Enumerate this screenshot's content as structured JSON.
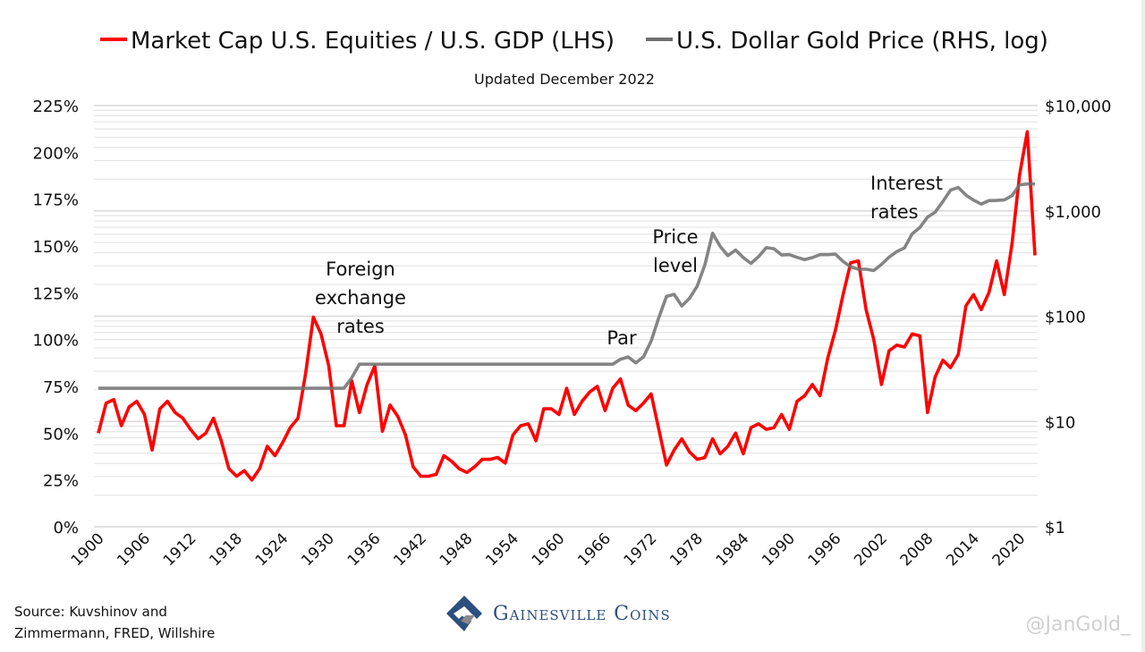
{
  "chart_data": {
    "type": "line",
    "title": "",
    "subtitle": "Updated December 2022",
    "x": [
      1900,
      1901,
      1902,
      1903,
      1904,
      1905,
      1906,
      1907,
      1908,
      1909,
      1910,
      1911,
      1912,
      1913,
      1914,
      1915,
      1916,
      1917,
      1918,
      1919,
      1920,
      1921,
      1922,
      1923,
      1924,
      1925,
      1926,
      1927,
      1928,
      1929,
      1930,
      1931,
      1932,
      1933,
      1934,
      1935,
      1936,
      1937,
      1938,
      1939,
      1940,
      1941,
      1942,
      1943,
      1944,
      1945,
      1946,
      1947,
      1948,
      1949,
      1950,
      1951,
      1952,
      1953,
      1954,
      1955,
      1956,
      1957,
      1958,
      1959,
      1960,
      1961,
      1962,
      1963,
      1964,
      1965,
      1966,
      1967,
      1968,
      1969,
      1970,
      1971,
      1972,
      1973,
      1974,
      1975,
      1976,
      1977,
      1978,
      1979,
      1980,
      1981,
      1982,
      1983,
      1984,
      1985,
      1986,
      1987,
      1988,
      1989,
      1990,
      1991,
      1992,
      1993,
      1994,
      1995,
      1996,
      1997,
      1998,
      1999,
      2000,
      2001,
      2002,
      2003,
      2004,
      2005,
      2006,
      2007,
      2008,
      2009,
      2010,
      2011,
      2012,
      2013,
      2014,
      2015,
      2016,
      2017,
      2018,
      2019,
      2020,
      2021,
      2022
    ],
    "series": [
      {
        "name": "Market Cap U.S. Equities / U.S. GDP (LHS)",
        "axis": "left",
        "color": "#ff0000",
        "unit": "%",
        "values": [
          50,
          66,
          68,
          54,
          64,
          67,
          60,
          41,
          63,
          67,
          61,
          58,
          52,
          47,
          50,
          58,
          46,
          31,
          27,
          30,
          25,
          31,
          43,
          38,
          45,
          53,
          58,
          82,
          112,
          103,
          86,
          54,
          54,
          78,
          61,
          76,
          86,
          51,
          65,
          59,
          49,
          32,
          27,
          27,
          28,
          38,
          35,
          31,
          29,
          32,
          36,
          36,
          37,
          34,
          49,
          54,
          55,
          46,
          63,
          63,
          60,
          74,
          60,
          67,
          72,
          75,
          62,
          74,
          79,
          65,
          62,
          66,
          71,
          52,
          33,
          41,
          47,
          40,
          36,
          37,
          47,
          39,
          43,
          50,
          39,
          53,
          55,
          52,
          53,
          60,
          52,
          67,
          70,
          76,
          70,
          90,
          105,
          124,
          141,
          142,
          116,
          100,
          76,
          94,
          97,
          96,
          103,
          102,
          61,
          80,
          89,
          85,
          92,
          118,
          124,
          116,
          125,
          142,
          124,
          151,
          188,
          211,
          145
        ]
      },
      {
        "name": "U.S. Dollar Gold Price (RHS, log)",
        "axis": "right",
        "color": "#707070",
        "unit": "$",
        "values": [
          20.67,
          20.67,
          20.67,
          20.67,
          20.67,
          20.67,
          20.67,
          20.67,
          20.67,
          20.67,
          20.67,
          20.67,
          20.67,
          20.67,
          20.67,
          20.67,
          20.67,
          20.67,
          20.67,
          20.67,
          20.67,
          20.67,
          20.67,
          20.67,
          20.67,
          20.67,
          20.67,
          20.67,
          20.67,
          20.67,
          20.67,
          20.67,
          20.67,
          26,
          35,
          35,
          35,
          35,
          35,
          35,
          35,
          35,
          35,
          35,
          35,
          35,
          35,
          35,
          35,
          35,
          35,
          35,
          35,
          35,
          35,
          35,
          35,
          35,
          35,
          35,
          35,
          35,
          35,
          35,
          35,
          35,
          35,
          35,
          39,
          41,
          36,
          41,
          58,
          97,
          154,
          161,
          125,
          148,
          193,
          307,
          613,
          460,
          376,
          424,
          361,
          317,
          368,
          447,
          437,
          381,
          384,
          362,
          344,
          360,
          384,
          384,
          388,
          331,
          294,
          279,
          279,
          271,
          310,
          363,
          410,
          445,
          604,
          695,
          872,
          972,
          1225,
          1572,
          1669,
          1411,
          1266,
          1160,
          1251,
          1257,
          1268,
          1393,
          1770,
          1799,
          1800
        ]
      }
    ],
    "left_axis": {
      "range": [
        0,
        225
      ],
      "ticks": [
        "0%",
        "25%",
        "50%",
        "75%",
        "100%",
        "125%",
        "150%",
        "175%",
        "200%",
        "225%"
      ]
    },
    "right_axis": {
      "scale": "log",
      "range": [
        1,
        10000
      ],
      "ticks": [
        "$1",
        "$10",
        "$100",
        "$1,000",
        "$10,000"
      ]
    },
    "x_ticks": [
      "1900",
      "1906",
      "1912",
      "1918",
      "1924",
      "1930",
      "1936",
      "1942",
      "1948",
      "1954",
      "1960",
      "1966",
      "1972",
      "1978",
      "1984",
      "1990",
      "1996",
      "2002",
      "2008",
      "2014",
      "2020"
    ],
    "grid": "horizontal log minor gridlines",
    "legend_placement": "top",
    "annotations": [
      {
        "lines": [
          "Foreign",
          "exchange",
          "rates"
        ],
        "year": 1935
      },
      {
        "lines": [
          "Par"
        ],
        "year": 1968
      },
      {
        "lines": [
          "Price",
          "level"
        ],
        "year": 1976
      },
      {
        "lines": [
          "Interest",
          "rates"
        ],
        "year": 2007
      }
    ]
  },
  "footer": {
    "source_line1": "Source: Kuvshinov and",
    "source_line2": "Zimmermann, FRED, Willshire",
    "logo_text": "Gainesville Coins",
    "handle": "@JanGold_"
  }
}
